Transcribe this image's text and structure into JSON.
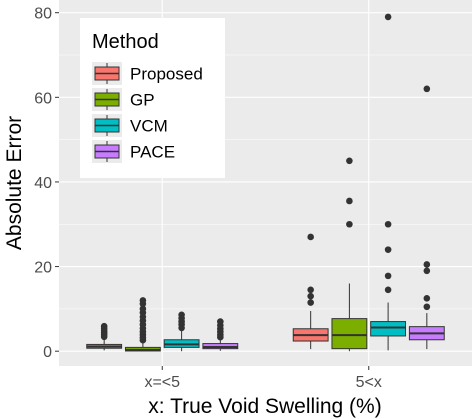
{
  "chart_data": {
    "type": "boxplot",
    "xlabel": "x: True Void Swelling (%)",
    "ylabel": "Absolute Error",
    "categories": [
      "x=<5",
      "5<x"
    ],
    "ylim": [
      -3.5,
      83
    ],
    "y_ticks": [
      0,
      20,
      40,
      60,
      80
    ],
    "grid": true,
    "legend": {
      "title": "Method",
      "position": "top-left",
      "entries": [
        "Proposed",
        "GP",
        "VCM",
        "PACE"
      ]
    },
    "series": [
      {
        "name": "Proposed",
        "color": "#f8766d",
        "boxes": [
          {
            "category": "x=<5",
            "min": 0.2,
            "q1": 0.7,
            "median": 1.1,
            "q3": 1.6,
            "max": 2.9,
            "outliers": [
              3.4,
              3.9,
              4.4,
              4.9,
              5.4,
              5.9
            ]
          },
          {
            "category": "5<x",
            "min": 0.5,
            "q1": 2.4,
            "median": 3.8,
            "q3": 5.3,
            "max": 9.5,
            "outliers": [
              11.5,
              13.0,
              14.5,
              27.0
            ]
          }
        ]
      },
      {
        "name": "GP",
        "color": "#7cae00",
        "boxes": [
          {
            "category": "x=<5",
            "min": 0.0,
            "q1": 0.05,
            "median": 0.3,
            "q3": 0.9,
            "max": 2.1,
            "outliers": [
              2.6,
              3.2,
              3.9,
              4.6,
              5.4,
              6.3,
              7.2,
              8.1,
              9.1,
              10.0,
              11.2,
              12.0
            ]
          },
          {
            "category": "5<x",
            "min": 0.0,
            "q1": 0.6,
            "median": 3.8,
            "q3": 7.7,
            "max": 16.0,
            "outliers": [
              30.0,
              35.5,
              45.0
            ]
          }
        ]
      },
      {
        "name": "VCM",
        "color": "#00bfc4",
        "boxes": [
          {
            "category": "x=<5",
            "min": 0.0,
            "q1": 0.9,
            "median": 1.6,
            "q3": 2.7,
            "max": 4.8,
            "outliers": [
              5.5,
              6.3,
              7.0,
              7.8,
              8.6
            ]
          },
          {
            "category": "5<x",
            "min": 0.2,
            "q1": 3.6,
            "median": 5.6,
            "q3": 7.0,
            "max": 11.5,
            "outliers": [
              14.5,
              17.8,
              24.0,
              30.0,
              79.0
            ]
          }
        ]
      },
      {
        "name": "PACE",
        "color": "#c77cff",
        "boxes": [
          {
            "category": "x=<5",
            "min": 0.1,
            "q1": 0.6,
            "median": 1.0,
            "q3": 1.8,
            "max": 2.8,
            "outliers": [
              3.3,
              3.9,
              4.6,
              5.3,
              6.1,
              7.0
            ]
          },
          {
            "category": "5<x",
            "min": 0.5,
            "q1": 2.7,
            "median": 4.2,
            "q3": 5.8,
            "max": 9.0,
            "outliers": [
              10.5,
              12.5,
              19.0,
              20.5,
              62.0
            ]
          }
        ]
      }
    ]
  }
}
